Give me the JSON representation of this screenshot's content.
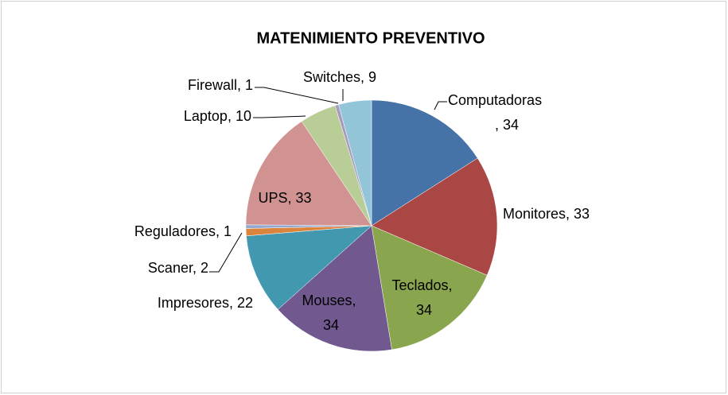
{
  "chart_data": {
    "type": "pie",
    "title": "MATENIMIENTO PREVENTIVO",
    "categories": [
      "Computadoras",
      "Monitores",
      "Teclados",
      "Mouses",
      "Impresores",
      "Scaner",
      "Reguladores",
      "UPS",
      "Laptop",
      "Firewall",
      "Switches"
    ],
    "values": [
      34,
      33,
      34,
      34,
      22,
      2,
      1,
      33,
      10,
      1,
      9
    ],
    "colors": [
      "#4572A7",
      "#AA4643",
      "#89A54E",
      "#71588F",
      "#4198AF",
      "#DB843D",
      "#93A9CF",
      "#D19392",
      "#B9CD96",
      "#A99BBD",
      "#92C5D8"
    ],
    "label_separator": ", "
  }
}
